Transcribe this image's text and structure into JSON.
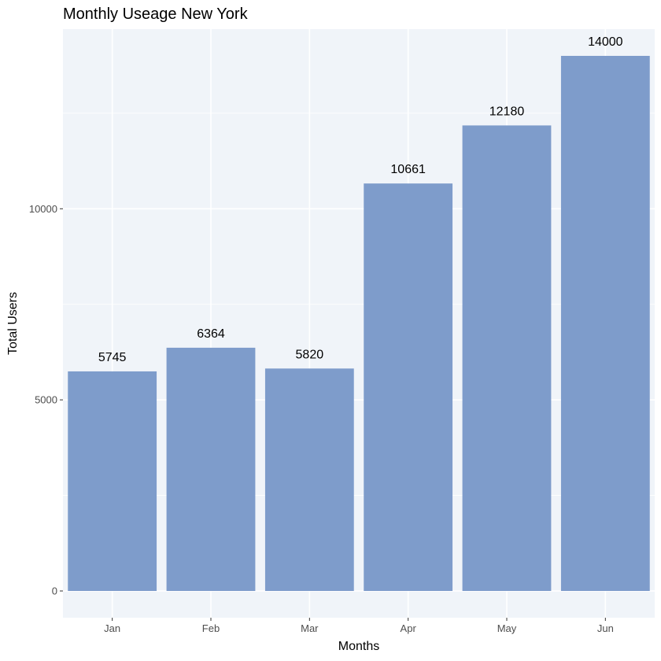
{
  "colors": {
    "panel_background": "#f0f4f9",
    "grid_line": "#ffffff",
    "bar_fill": "#7e9ccb",
    "tick_mark": "#333333"
  },
  "chart_data": {
    "type": "bar",
    "title": "Monthly Useage New York",
    "xlabel": "Months",
    "ylabel": "Total Users",
    "categories": [
      "Jan",
      "Feb",
      "Mar",
      "Apr",
      "May",
      "Jun"
    ],
    "values": [
      5745,
      6364,
      5820,
      10661,
      12180,
      14000
    ],
    "data_labels": [
      "5745",
      "6364",
      "5820",
      "10661",
      "12180",
      "14000"
    ],
    "yticks": [
      0,
      5000,
      10000
    ],
    "ytick_labels": [
      "0",
      "5000",
      "10000"
    ],
    "ylim": [
      -700,
      14700
    ],
    "grid": true,
    "legend": "none"
  }
}
